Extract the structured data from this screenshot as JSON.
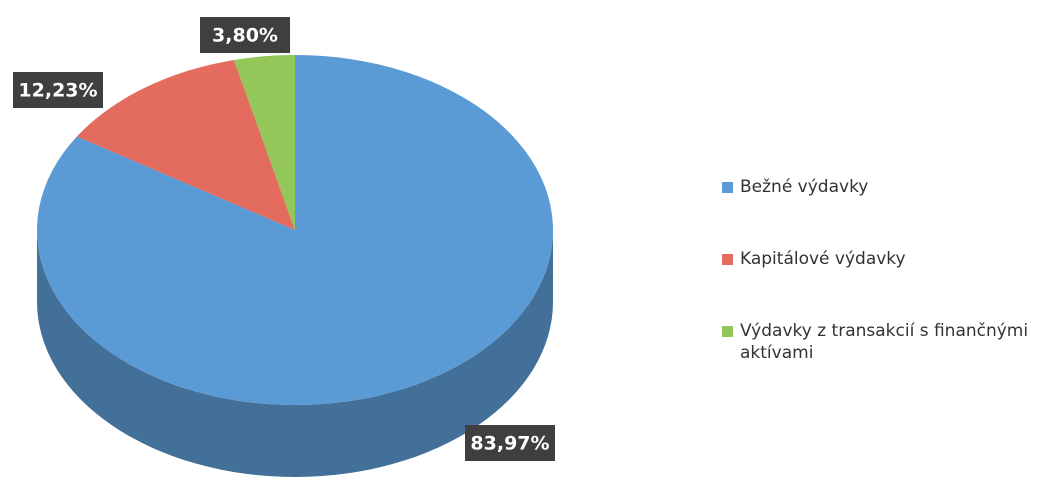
{
  "chart_data": {
    "type": "pie",
    "categories": [
      "Bežné výdavky",
      "Kapitálové výdavky",
      "Výdavky z transakcií s finančnými aktívami"
    ],
    "values": [
      83.97,
      12.23,
      3.8
    ],
    "value_labels": [
      "83,97%",
      "12,23%",
      "3,80%"
    ],
    "colors": [
      "#5b9bd5",
      "#e46c5f",
      "#93c759"
    ],
    "legend": "right"
  }
}
